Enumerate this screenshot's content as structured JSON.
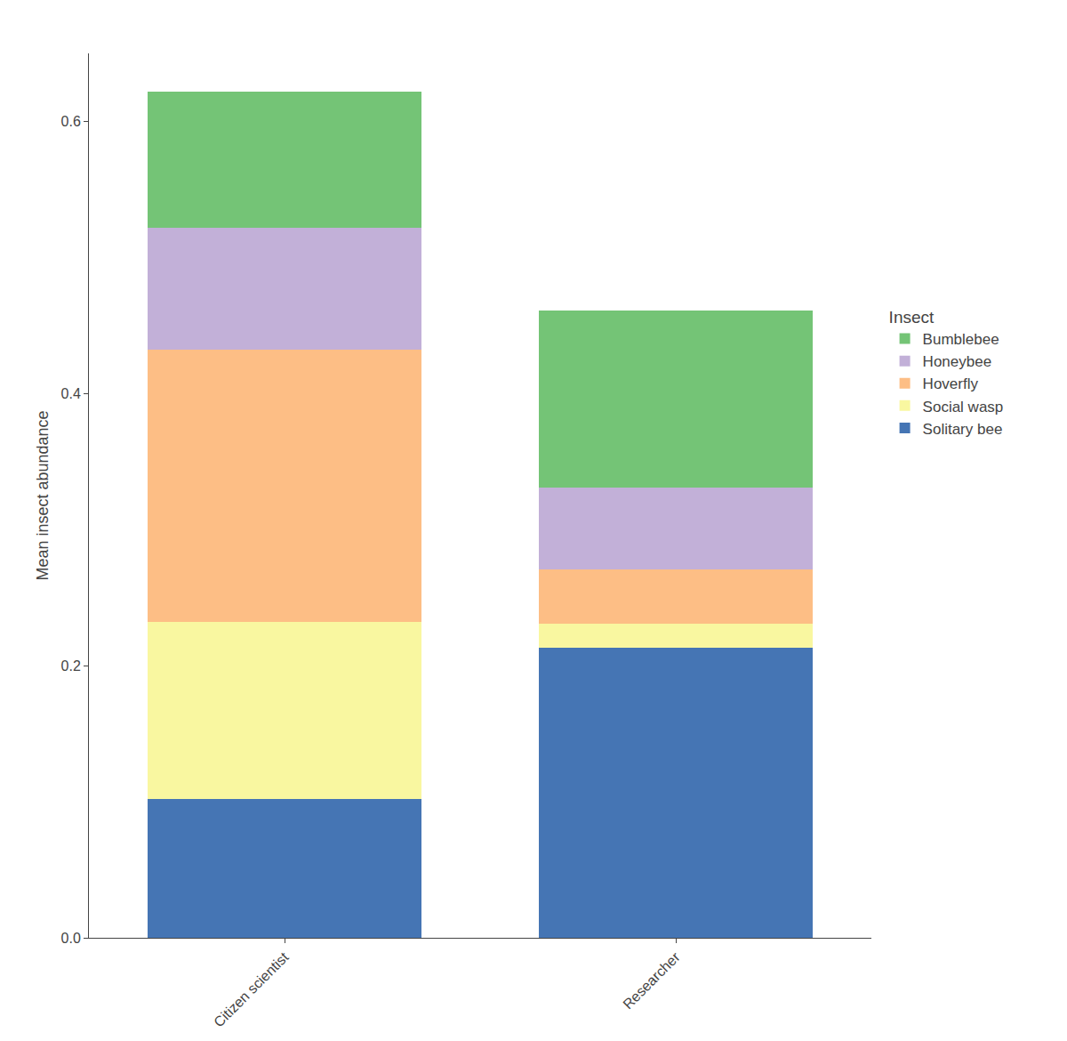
{
  "chart_data": {
    "type": "bar",
    "stacked": true,
    "categories": [
      "Citizen scientist",
      "Researcher"
    ],
    "series": [
      {
        "name": "Solitary bee",
        "color": "#4575B4",
        "values": [
          0.102,
          0.213
        ]
      },
      {
        "name": "Social wasp",
        "color": "#F9F7A0",
        "values": [
          0.13,
          0.018
        ]
      },
      {
        "name": "Hoverfly",
        "color": "#FDBE85",
        "values": [
          0.2,
          0.04
        ]
      },
      {
        "name": "Honeybee",
        "color": "#C2B0D8",
        "values": [
          0.09,
          0.06
        ]
      },
      {
        "name": "Bumblebee",
        "color": "#74C476",
        "values": [
          0.1,
          0.13
        ]
      }
    ],
    "ylabel": "Mean insect abundance",
    "legend_title": "Insect",
    "legend": "right",
    "ylim": [
      0,
      0.65
    ],
    "yticks": [
      {
        "value": 0,
        "label": "0.0"
      },
      0.2,
      0.4,
      0.6
    ],
    "grid": false
  }
}
